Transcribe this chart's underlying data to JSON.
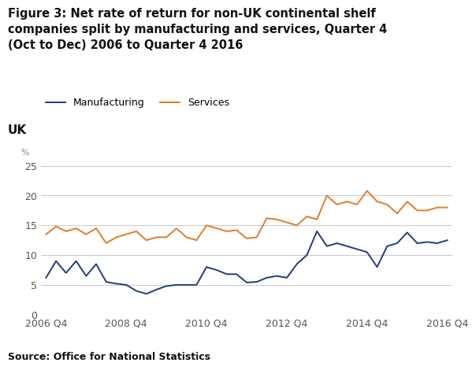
{
  "title_line1": "Figure 3: Net rate of return for non-UK continental shelf",
  "title_line2": "companies split by manufacturing and services, Quarter 4",
  "title_line3": "(Oct to Dec) 2006 to Quarter 4 2016",
  "subtitle": "UK",
  "source": "Source: Office for National Statistics",
  "ylabel": "%",
  "ylim": [
    0,
    27
  ],
  "yticks": [
    0,
    5,
    10,
    15,
    20,
    25
  ],
  "xtick_labels": [
    "2006 Q4",
    "2008 Q4",
    "2010 Q4",
    "2012 Q4",
    "2014 Q4",
    "2016 Q4"
  ],
  "xtick_positions": [
    0,
    8,
    16,
    24,
    32,
    40
  ],
  "manufacturing": [
    6.2,
    9.0,
    7.0,
    9.0,
    6.5,
    8.5,
    5.5,
    5.2,
    5.0,
    4.0,
    3.5,
    4.2,
    4.8,
    5.0,
    5.0,
    5.0,
    8.0,
    7.5,
    6.8,
    6.8,
    5.4,
    5.5,
    6.2,
    6.5,
    6.2,
    8.5,
    10.0,
    14.0,
    11.5,
    12.0,
    11.5,
    11.0,
    10.5,
    8.0,
    11.5,
    12.0,
    13.8,
    12.0,
    12.2,
    12.0,
    12.5
  ],
  "services": [
    13.5,
    14.8,
    14.0,
    14.5,
    13.5,
    14.5,
    12.0,
    13.0,
    13.5,
    14.0,
    12.5,
    13.0,
    13.0,
    14.5,
    13.0,
    12.5,
    15.0,
    14.5,
    14.0,
    14.2,
    12.8,
    13.0,
    16.2,
    16.0,
    15.5,
    15.0,
    16.5,
    16.0,
    20.0,
    18.5,
    19.0,
    18.5,
    20.8,
    19.0,
    18.5,
    17.0,
    19.0,
    17.5,
    17.5,
    18.0,
    18.0
  ],
  "manufacturing_color": "#1f3d7a",
  "services_color": "#e07b2a",
  "grid_color": "#cccccc",
  "background_color": "#ffffff",
  "title_fontsize": 10.5,
  "subtitle_fontsize": 11,
  "legend_fontsize": 9,
  "axis_fontsize": 9,
  "source_fontsize": 9
}
